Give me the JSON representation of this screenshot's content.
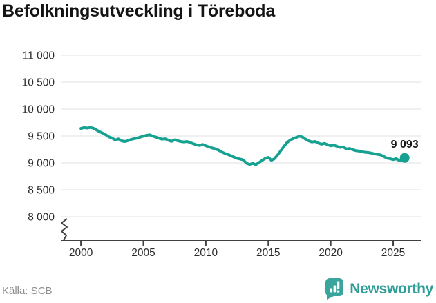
{
  "title": "Befolkningsutveckling i Töreboda",
  "footer": {
    "source": "Källa: SCB",
    "brand": "Newsworthy"
  },
  "chart_data": {
    "type": "line",
    "title": "Befolkningsutveckling i Töreboda",
    "xlabel": "",
    "ylabel": "",
    "xlim": [
      1998.39,
      2027.21
    ],
    "ylim": [
      8000,
      11000
    ],
    "grid": true,
    "axis_break": true,
    "legend": "none",
    "yticks": [
      {
        "value": 8000,
        "label": "8 000"
      },
      {
        "value": 8500,
        "label": "8 500"
      },
      {
        "value": 9000,
        "label": "9 000"
      },
      {
        "value": 9500,
        "label": "9 500"
      },
      {
        "value": 10000,
        "label": "10 000"
      },
      {
        "value": 10500,
        "label": "10 500"
      },
      {
        "value": 11000,
        "label": "11 000"
      }
    ],
    "xticks": [
      {
        "value": 2000,
        "label": "2000"
      },
      {
        "value": 2005,
        "label": "2005"
      },
      {
        "value": 2010,
        "label": "2010"
      },
      {
        "value": 2015,
        "label": "2015"
      },
      {
        "value": 2020,
        "label": "2020"
      },
      {
        "value": 2025,
        "label": "2025"
      }
    ],
    "end_label": "9 093",
    "end_value": 9093,
    "colors": {
      "line": "#17a191",
      "grid": "#e2e2e2",
      "axis": "#404040",
      "tick_label": "#2b2b2b",
      "value_label": "#1a1a1a",
      "logo": "#3aa59d",
      "brand_text": "#2e9e97"
    },
    "series": [
      {
        "points": [
          [
            2000,
            9640
          ],
          [
            2000.25,
            9655
          ],
          [
            2000.5,
            9648
          ],
          [
            2000.75,
            9658
          ],
          [
            2001,
            9645
          ],
          [
            2001.25,
            9610
          ],
          [
            2001.5,
            9580
          ],
          [
            2001.75,
            9552
          ],
          [
            2002,
            9520
          ],
          [
            2002.25,
            9482
          ],
          [
            2002.5,
            9462
          ],
          [
            2002.75,
            9425
          ],
          [
            2003,
            9446
          ],
          [
            2003.25,
            9410
          ],
          [
            2003.5,
            9398
          ],
          [
            2003.75,
            9412
          ],
          [
            2004,
            9435
          ],
          [
            2004.25,
            9448
          ],
          [
            2004.5,
            9462
          ],
          [
            2004.75,
            9478
          ],
          [
            2005,
            9497
          ],
          [
            2005.25,
            9512
          ],
          [
            2005.5,
            9520
          ],
          [
            2005.75,
            9498
          ],
          [
            2006,
            9478
          ],
          [
            2006.25,
            9458
          ],
          [
            2006.5,
            9440
          ],
          [
            2006.75,
            9448
          ],
          [
            2007,
            9420
          ],
          [
            2007.25,
            9400
          ],
          [
            2007.5,
            9428
          ],
          [
            2007.75,
            9412
          ],
          [
            2008,
            9398
          ],
          [
            2008.25,
            9388
          ],
          [
            2008.5,
            9398
          ],
          [
            2008.75,
            9378
          ],
          [
            2009,
            9355
          ],
          [
            2009.25,
            9335
          ],
          [
            2009.5,
            9325
          ],
          [
            2009.75,
            9342
          ],
          [
            2010,
            9318
          ],
          [
            2010.25,
            9298
          ],
          [
            2010.5,
            9278
          ],
          [
            2010.75,
            9262
          ],
          [
            2011,
            9238
          ],
          [
            2011.25,
            9205
          ],
          [
            2011.5,
            9178
          ],
          [
            2011.75,
            9158
          ],
          [
            2012,
            9135
          ],
          [
            2012.25,
            9108
          ],
          [
            2012.5,
            9085
          ],
          [
            2012.75,
            9072
          ],
          [
            2013,
            9055
          ],
          [
            2013.25,
            8995
          ],
          [
            2013.5,
            8972
          ],
          [
            2013.75,
            8992
          ],
          [
            2014,
            8968
          ],
          [
            2014.25,
            9005
          ],
          [
            2014.5,
            9045
          ],
          [
            2014.75,
            9082
          ],
          [
            2015,
            9102
          ],
          [
            2015.25,
            9048
          ],
          [
            2015.5,
            9078
          ],
          [
            2015.75,
            9148
          ],
          [
            2016,
            9225
          ],
          [
            2016.25,
            9305
          ],
          [
            2016.5,
            9378
          ],
          [
            2016.75,
            9422
          ],
          [
            2017,
            9452
          ],
          [
            2017.25,
            9472
          ],
          [
            2017.5,
            9498
          ],
          [
            2017.75,
            9478
          ],
          [
            2018,
            9438
          ],
          [
            2018.25,
            9408
          ],
          [
            2018.5,
            9388
          ],
          [
            2018.75,
            9398
          ],
          [
            2019,
            9368
          ],
          [
            2019.25,
            9348
          ],
          [
            2019.5,
            9362
          ],
          [
            2019.75,
            9338
          ],
          [
            2020,
            9318
          ],
          [
            2020.25,
            9328
          ],
          [
            2020.5,
            9308
          ],
          [
            2020.75,
            9288
          ],
          [
            2021,
            9298
          ],
          [
            2021.25,
            9258
          ],
          [
            2021.5,
            9268
          ],
          [
            2021.75,
            9248
          ],
          [
            2022,
            9228
          ],
          [
            2022.25,
            9222
          ],
          [
            2022.5,
            9208
          ],
          [
            2022.75,
            9198
          ],
          [
            2023,
            9192
          ],
          [
            2023.25,
            9182
          ],
          [
            2023.5,
            9168
          ],
          [
            2023.75,
            9158
          ],
          [
            2024,
            9148
          ],
          [
            2024.25,
            9118
          ],
          [
            2024.5,
            9088
          ],
          [
            2024.75,
            9078
          ],
          [
            2025,
            9062
          ],
          [
            2025.25,
            9078
          ],
          [
            2025.5,
            9038
          ],
          [
            2025.75,
            9060
          ],
          [
            2025.92,
            9093
          ]
        ]
      }
    ]
  }
}
